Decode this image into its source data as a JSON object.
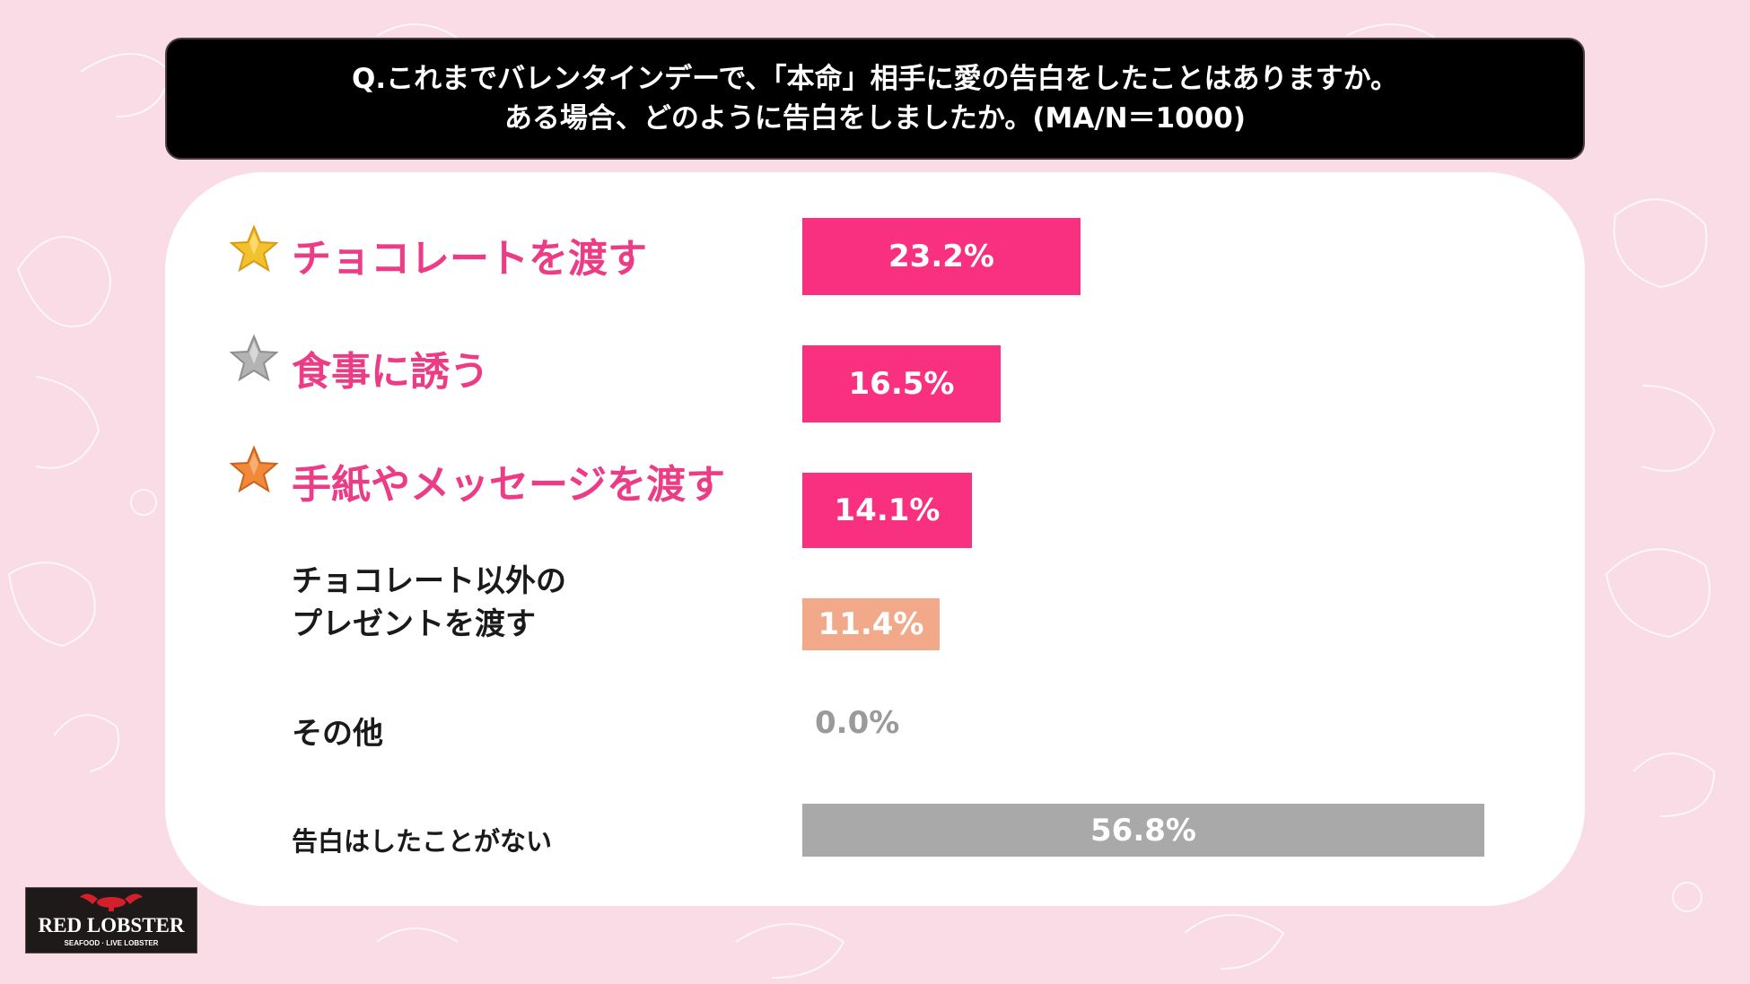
{
  "header": {
    "line1": "Q.これまでバレンタインデーで、「本命」相手に愛の告白をしたことはありますか。",
    "line2": "ある場合、どのように告白をしましたか。(MA/N＝1000)"
  },
  "colors": {
    "pink": "#f9307f",
    "peach": "#f2a98a",
    "gray": "#a9a9a9",
    "gold": "#f2c12e",
    "silver": "#b3b3b3",
    "bronze": "#f08a3a"
  },
  "chart_data": {
    "type": "bar",
    "orientation": "horizontal",
    "categories": [
      "チョコレートを渡す",
      "食事に誘う",
      "手紙やメッセージを渡す",
      "チョコレート以外のプレゼントを渡す",
      "その他",
      "告白はしたことがない"
    ],
    "category_lines": [
      [
        "チョコレートを渡す"
      ],
      [
        "食事に誘う"
      ],
      [
        "手紙やメッセージを渡す"
      ],
      [
        "チョコレート以外の",
        "プレゼントを渡す"
      ],
      [
        "その他"
      ],
      [
        "告白はしたことがない"
      ]
    ],
    "values": [
      23.2,
      16.5,
      14.1,
      11.4,
      0.0,
      56.8
    ],
    "value_labels": [
      "23.2%",
      "16.5%",
      "14.1%",
      "11.4%",
      "0.0%",
      "56.8%"
    ],
    "ranks": [
      "gold-star-icon",
      "silver-star-icon",
      "bronze-star-icon",
      "",
      "",
      ""
    ],
    "xlim": [
      0,
      60
    ],
    "grid": false,
    "legend": "none"
  },
  "logo": {
    "name": "RED LOBSTER",
    "tagline": "SEAFOOD · LIVE LOBSTER"
  }
}
